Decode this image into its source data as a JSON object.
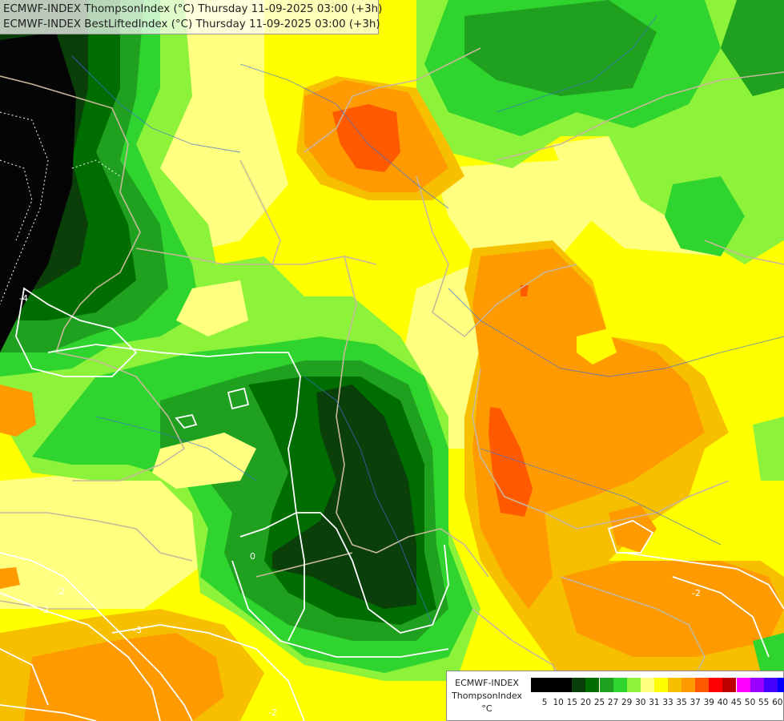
{
  "header": {
    "line1": "ECMWF-INDEX ThompsonIndex (°C) Thursday 11-09-2025 03:00 (+3h)",
    "line2": "ECMWF-INDEX BestLiftedIndex (°C) Thursday 11-09-2025 03:00 (+3h)"
  },
  "legend": {
    "line1": "ECMWF-INDEX",
    "line2": "ThompsonIndex",
    "unit": "°C",
    "stops": [
      {
        "label": "5",
        "color": "#000000"
      },
      {
        "label": "10",
        "color": "#000000"
      },
      {
        "label": "15",
        "color": "#000000"
      },
      {
        "label": "20",
        "color": "#0a3f0a"
      },
      {
        "label": "25",
        "color": "#006d00"
      },
      {
        "label": "27",
        "color": "#1fa01f"
      },
      {
        "label": "29",
        "color": "#2fd42f"
      },
      {
        "label": "30",
        "color": "#8cf23a"
      },
      {
        "label": "31",
        "color": "#ffff80"
      },
      {
        "label": "33",
        "color": "#ffff00"
      },
      {
        "label": "35",
        "color": "#f6c000"
      },
      {
        "label": "37",
        "color": "#ff9b00"
      },
      {
        "label": "39",
        "color": "#ff5a00"
      },
      {
        "label": "40",
        "color": "#ff0000"
      },
      {
        "label": "45",
        "color": "#c00000"
      },
      {
        "label": "50",
        "color": "#ff00ff"
      },
      {
        "label": "55",
        "color": "#9900ff"
      },
      {
        "label": "60",
        "color": "#4400ff"
      }
    ],
    "extra_stop": {
      "label": "",
      "color": "#0000ff"
    }
  },
  "contour_labels": [
    "-4",
    "0",
    "-2",
    "-2",
    "-3",
    "-2",
    "-2"
  ],
  "map_colors": {
    "black": "#050505",
    "darkgreen": "#0a3f0a",
    "green": "#006d00",
    "midgreen": "#1fa01f",
    "lightgreen": "#2fd42f",
    "lime": "#8cf23a",
    "paleyellow": "#ffff80",
    "yellow": "#ffff00",
    "gold": "#f6c000",
    "orange": "#ff9b00",
    "red": "#ff5a00"
  }
}
